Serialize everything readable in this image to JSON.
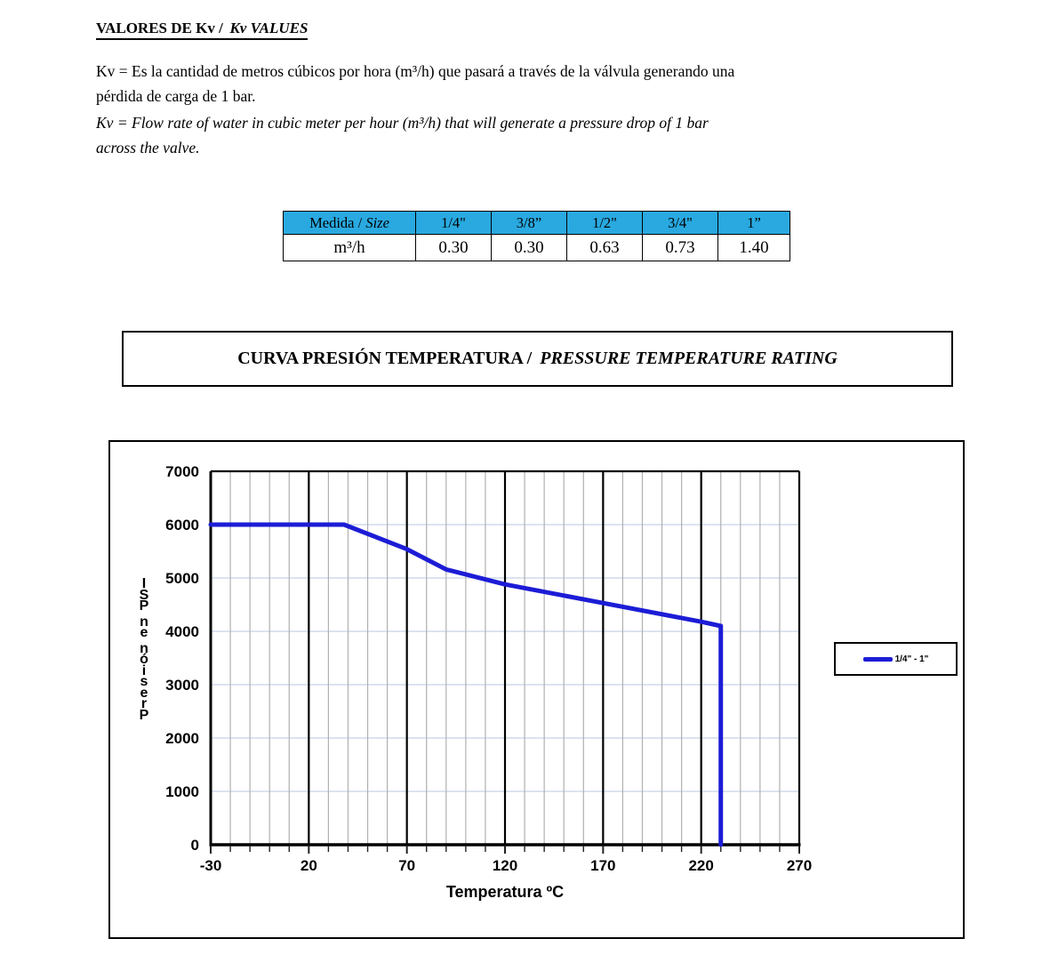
{
  "heading": {
    "text_regular": "VALORES DE Kv /",
    "text_italic": "Kv VALUES"
  },
  "intro_es": {
    "line1": "Kv = Es la cantidad de metros cúbicos por hora (m³/h) que pasará a través de la válvula generando una",
    "line2": "pérdida de carga de 1 bar."
  },
  "intro_en": {
    "line1": "Kv = Flow rate of water in cubic meter per hour (m³/h) that will generate a pressure drop of 1 bar",
    "line2": "across the valve."
  },
  "kv_table": {
    "header_bg": "#29a9e0",
    "row_header_regular": "Medida / ",
    "row_header_italic": "Size",
    "sizes": [
      "1/4\"",
      "3/8”",
      "1/2\"",
      "3/4\"",
      "1”"
    ],
    "unit_label": "m³/h",
    "values": [
      "0.30",
      "0.30",
      "0.63",
      "0.73",
      "1.40"
    ]
  },
  "section_title": {
    "text_regular": "CURVA PRESIÓN TEMPERATURA /",
    "text_italic": "PRESSURE TEMPERATURE RATING"
  },
  "chart_data": {
    "type": "line",
    "title": "",
    "xlabel": "Temperatura ºC",
    "ylabel": "Presión en PSI",
    "xlim": [
      -30,
      270
    ],
    "ylim": [
      0,
      7000
    ],
    "x_major_ticks": [
      -30,
      20,
      70,
      120,
      170,
      220,
      270
    ],
    "x_minor_step": 10,
    "y_ticks": [
      0,
      1000,
      2000,
      3000,
      4000,
      5000,
      6000,
      7000
    ],
    "grid": {
      "vertical_minor": true,
      "vertical_major": true,
      "horizontal": true,
      "legend_position": "right-outside"
    },
    "colors": {
      "curve": "#1c1cd6",
      "major_grid": "#000000",
      "minor_grid": "#b0b0b0",
      "horizontal_grid": "#c6d2e8"
    },
    "legend": {
      "entries": [
        {
          "label": "1/4\" - 1\"",
          "color": "#1c1cd6"
        }
      ]
    },
    "series": [
      {
        "name": "1/4\" - 1\"",
        "color": "#1c1cd6",
        "points": [
          [
            -30,
            6000
          ],
          [
            38,
            6000
          ],
          [
            70,
            5540
          ],
          [
            90,
            5160
          ],
          [
            120,
            4880
          ],
          [
            170,
            4530
          ],
          [
            220,
            4180
          ],
          [
            230,
            4100
          ],
          [
            230,
            0
          ]
        ]
      }
    ]
  }
}
